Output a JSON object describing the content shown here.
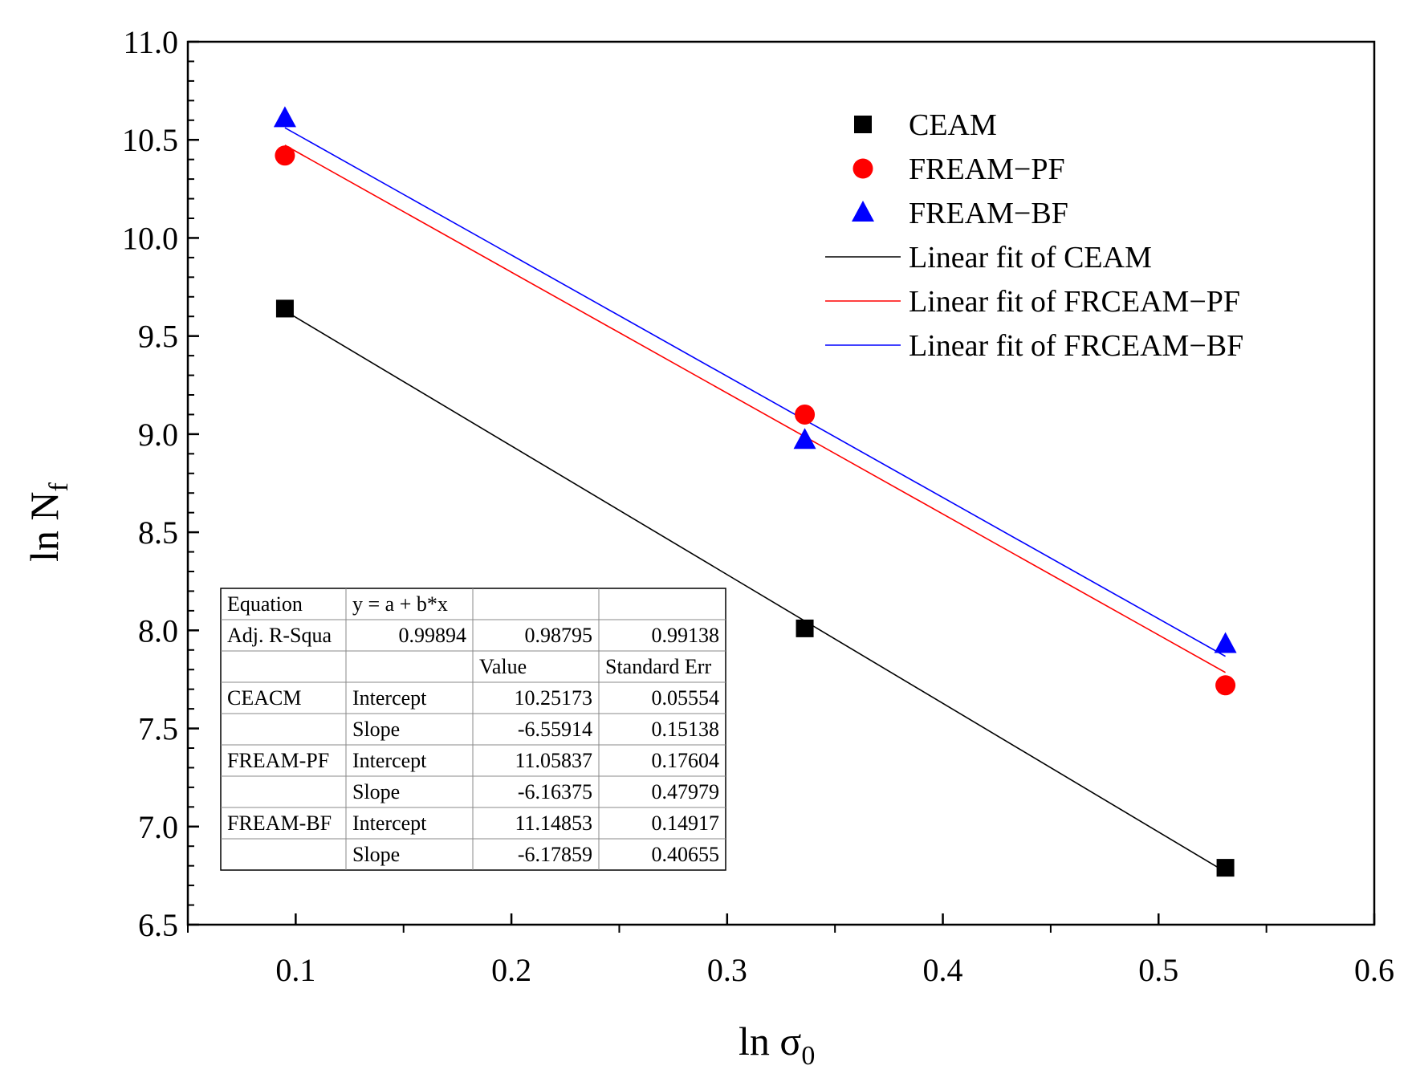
{
  "chart_data": {
    "type": "scatter",
    "xlabel": "ln σ",
    "xlabel_sub": "0",
    "ylabel": "ln N",
    "ylabel_sub": "f",
    "xlim": [
      0.05,
      0.6
    ],
    "ylim": [
      6.5,
      11.0
    ],
    "xticks": [
      0.1,
      0.2,
      0.3,
      0.4,
      0.5,
      0.6
    ],
    "xtick_labels": [
      "0.1",
      "0.2",
      "0.3",
      "0.4",
      "0.5",
      "0.6"
    ],
    "yticks": [
      6.5,
      7.0,
      7.5,
      8.0,
      8.5,
      9.0,
      9.5,
      10.0,
      10.5,
      11.0
    ],
    "ytick_labels": [
      "6.5",
      "7.0",
      "7.5",
      "8.0",
      "8.5",
      "9.0",
      "9.5",
      "10.0",
      "10.5",
      "11.0"
    ],
    "legend_position": "top-right",
    "series": [
      {
        "name": "CEAM",
        "marker": "square",
        "color": "#000000",
        "x": [
          0.095,
          0.336,
          0.531
        ],
        "y": [
          9.64,
          8.01,
          6.79
        ]
      },
      {
        "name": "FREAM−PF",
        "marker": "circle",
        "color": "#ff0000",
        "x": [
          0.095,
          0.336,
          0.531
        ],
        "y": [
          10.42,
          9.1,
          7.72
        ]
      },
      {
        "name": "FREAM−BF",
        "marker": "triangle",
        "color": "#0000ff",
        "x": [
          0.095,
          0.336,
          0.531
        ],
        "y": [
          10.61,
          8.97,
          7.93
        ]
      }
    ],
    "fits": [
      {
        "name": "Linear fit of CEAM",
        "color": "#000000",
        "intercept": 10.25173,
        "slope": -6.55914,
        "x_range": [
          0.095,
          0.531
        ]
      },
      {
        "name": "Linear fit of FRCEAM−PF",
        "color": "#ff0000",
        "intercept": 11.05837,
        "slope": -6.16375,
        "x_range": [
          0.095,
          0.531
        ]
      },
      {
        "name": "Linear fit of FRCEAM−BF",
        "color": "#0000ff",
        "intercept": 11.14853,
        "slope": -6.17859,
        "x_range": [
          0.095,
          0.531
        ]
      }
    ],
    "table": {
      "rows": [
        [
          "Equation",
          "y = a + b*x",
          "",
          ""
        ],
        [
          "Adj. R-Squa",
          "0.99894",
          "0.98795",
          "0.99138"
        ],
        [
          "",
          "",
          "Value",
          "Standard Err"
        ],
        [
          "CEACM",
          "Intercept",
          "10.25173",
          "0.05554"
        ],
        [
          "",
          "Slope",
          "-6.55914",
          "0.15138"
        ],
        [
          "FREAM-PF",
          "Intercept",
          "11.05837",
          "0.17604"
        ],
        [
          "",
          "Slope",
          "-6.16375",
          "0.47979"
        ],
        [
          "FREAM-BF",
          "Intercept",
          "11.14853",
          "0.14917"
        ],
        [
          "",
          "Slope",
          "-6.17859",
          "0.40655"
        ]
      ],
      "align": [
        [
          "left",
          "left",
          "left",
          "left"
        ],
        [
          "left",
          "right",
          "right",
          "right"
        ],
        [
          "left",
          "left",
          "left",
          "left"
        ],
        [
          "left",
          "left",
          "right",
          "right"
        ],
        [
          "left",
          "left",
          "right",
          "right"
        ],
        [
          "left",
          "left",
          "right",
          "right"
        ],
        [
          "left",
          "left",
          "right",
          "right"
        ],
        [
          "left",
          "left",
          "right",
          "right"
        ],
        [
          "left",
          "left",
          "right",
          "right"
        ]
      ]
    }
  }
}
